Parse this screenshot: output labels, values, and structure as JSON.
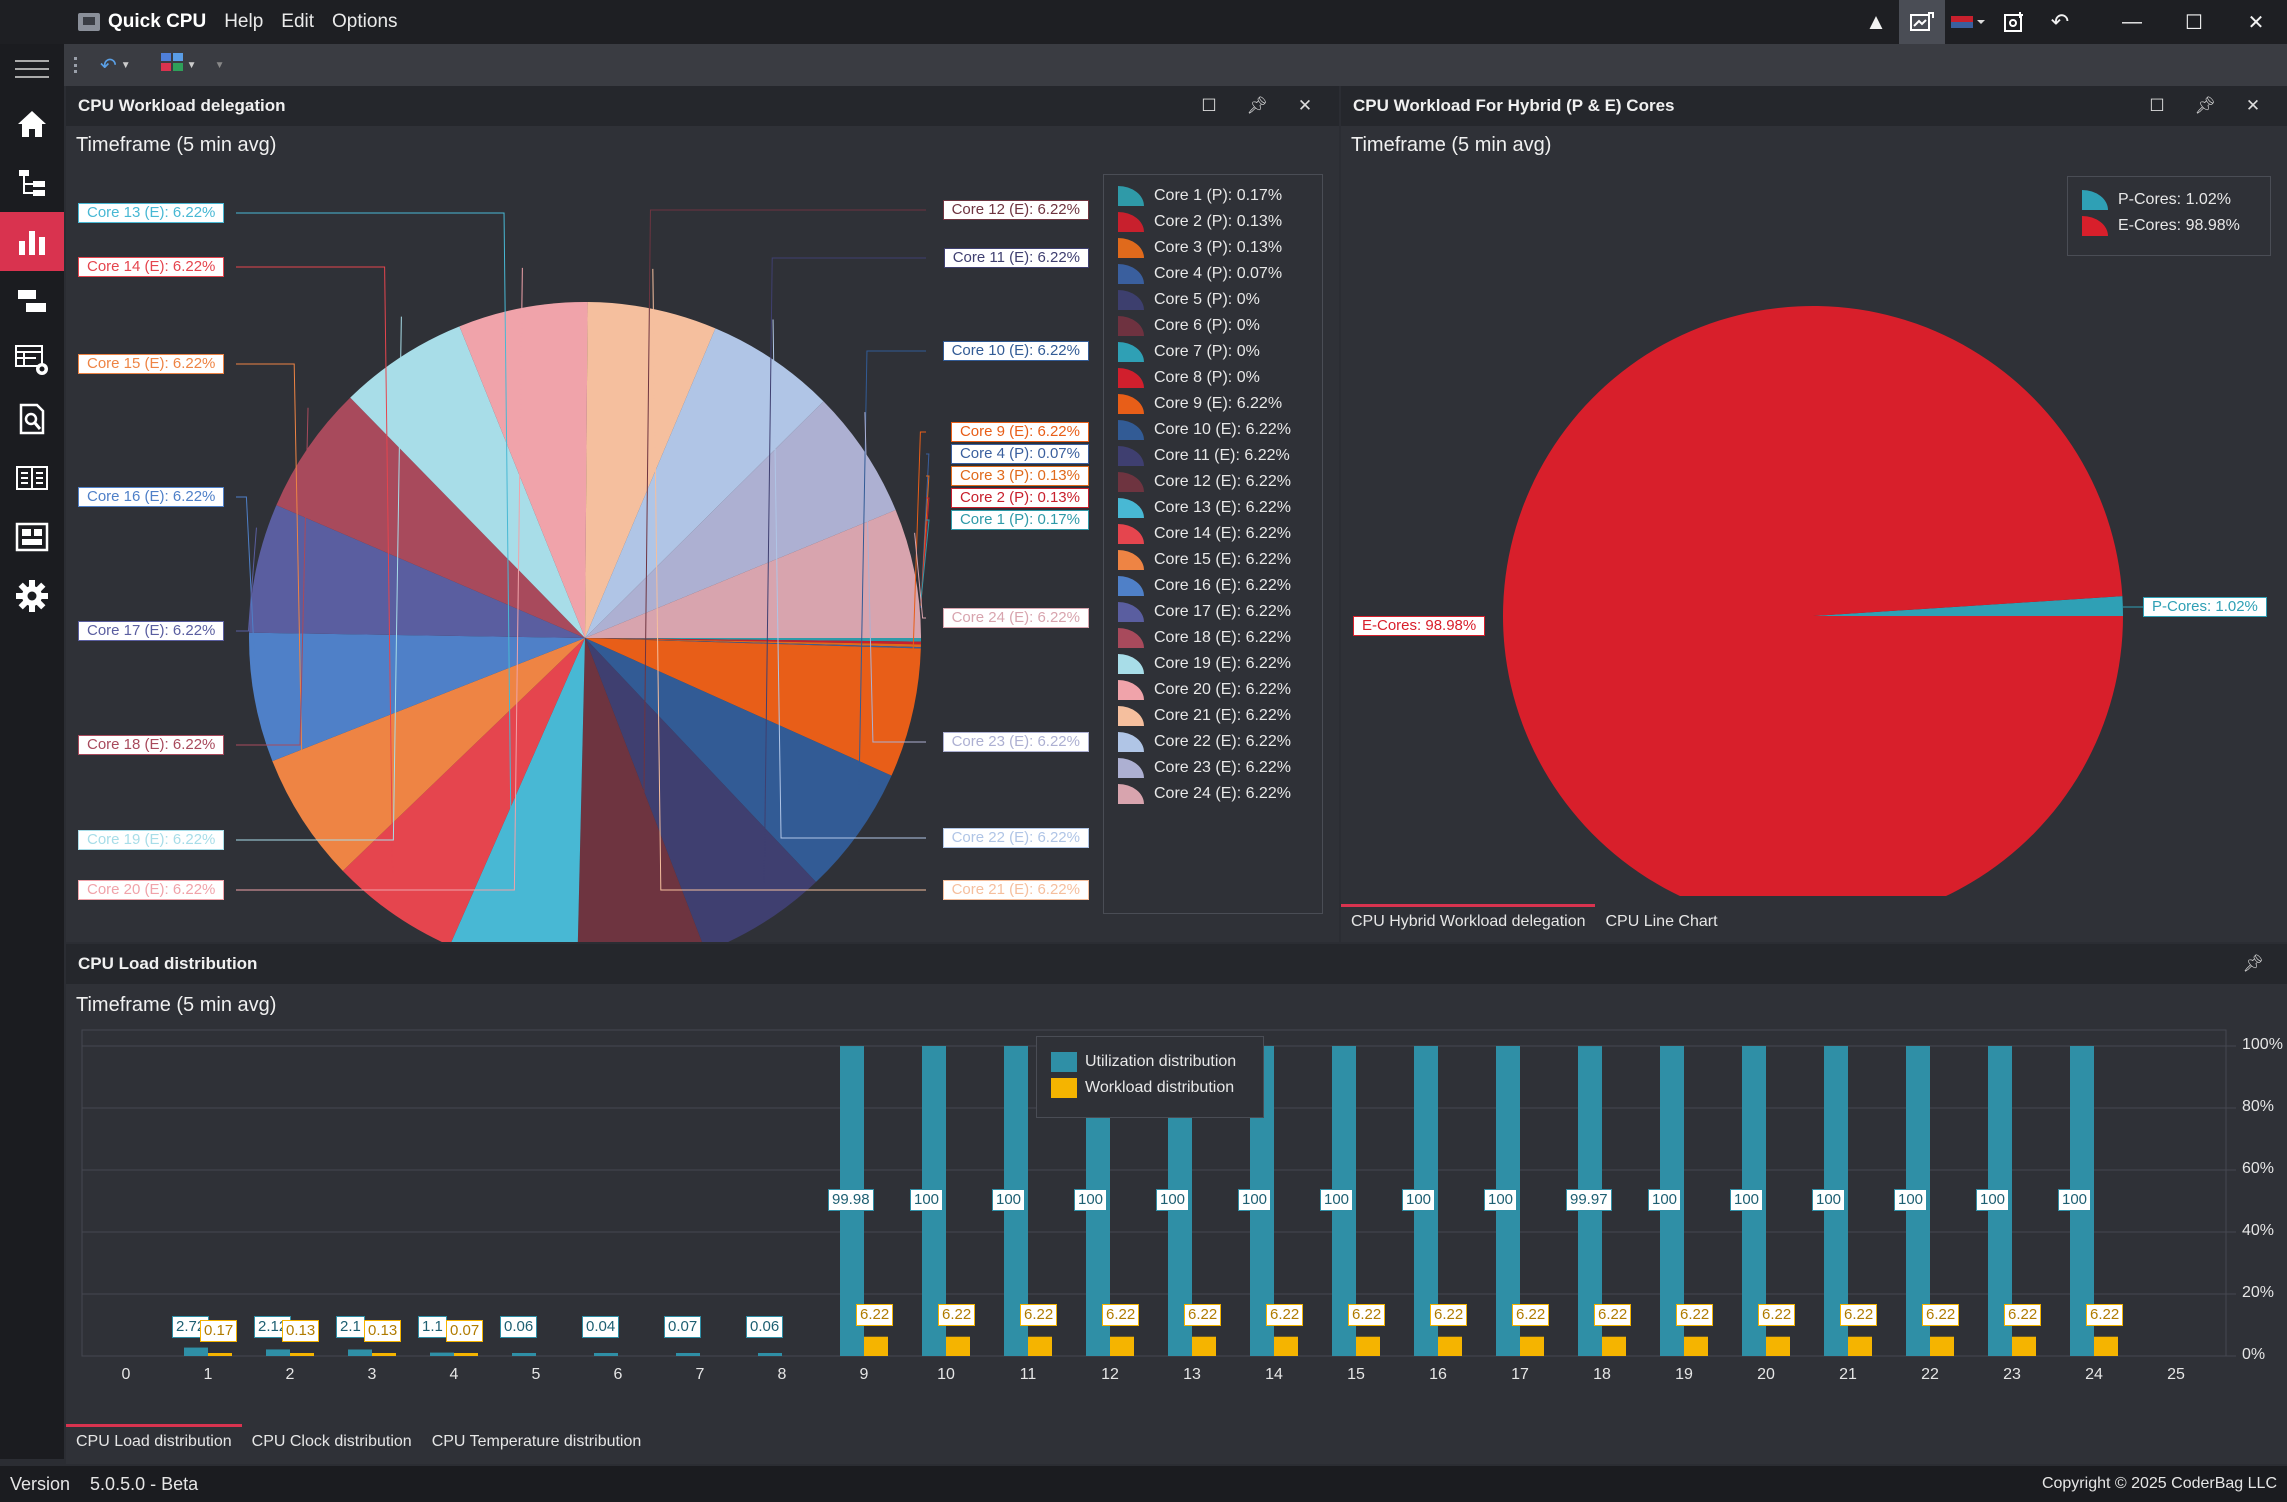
{
  "app": {
    "title": "Quick CPU",
    "menus": [
      "Help",
      "Edit",
      "Options"
    ]
  },
  "titlebar_icons": [
    "warning-icon",
    "screenshot-icon",
    "theme-icon",
    "capture-icon",
    "undo-icon"
  ],
  "window_controls": [
    "minimize",
    "maximize",
    "close"
  ],
  "sidebar": {
    "items": [
      "home-icon",
      "tree-icon",
      "bar-chart-icon",
      "gantt-icon",
      "settings-table-icon",
      "search-doc-icon",
      "book-icon",
      "dashboard-icon",
      "gear-icon"
    ],
    "active_index": 2
  },
  "workload_panel": {
    "title": "CPU Workload delegation",
    "timeframe": "Timeframe (5 min avg)",
    "chart_data": {
      "type": "pie",
      "slices": [
        {
          "label": "Core 1 (P)",
          "value": 0.17,
          "display": "Core 1 (P):  0.17%",
          "color": "#2f9aa8"
        },
        {
          "label": "Core 2 (P)",
          "value": 0.13,
          "display": "Core 2 (P):  0.13%",
          "color": "#c8202d"
        },
        {
          "label": "Core 3 (P)",
          "value": 0.13,
          "display": "Core 3 (P):  0.13%",
          "color": "#e06a1c"
        },
        {
          "label": "Core 4 (P)",
          "value": 0.07,
          "display": "Core 4 (P):  0.07%",
          "color": "#3a5f9e"
        },
        {
          "label": "Core 5 (P)",
          "value": 0,
          "display": "Core 5 (P):  0%",
          "color": "#3d3f6e"
        },
        {
          "label": "Core 6 (P)",
          "value": 0,
          "display": "Core 6 (P):  0%",
          "color": "#6e3240"
        },
        {
          "label": "Core 7 (P)",
          "value": 0,
          "display": "Core 7 (P):  0%",
          "color": "#2fa0b5"
        },
        {
          "label": "Core 8 (P)",
          "value": 0,
          "display": "Core 8 (P):  0%",
          "color": "#d11f2d"
        },
        {
          "label": "Core 9 (E)",
          "value": 6.22,
          "display": "Core 9 (E):  6.22%",
          "color": "#e85e18"
        },
        {
          "label": "Core 10 (E)",
          "value": 6.22,
          "display": "Core 10 (E):  6.22%",
          "color": "#325b95"
        },
        {
          "label": "Core 11 (E)",
          "value": 6.22,
          "display": "Core 11 (E):  6.22%",
          "color": "#3f3f70"
        },
        {
          "label": "Core 12 (E)",
          "value": 6.22,
          "display": "Core 12 (E):  6.22%",
          "color": "#6e3440"
        },
        {
          "label": "Core 13 (E)",
          "value": 6.22,
          "display": "Core 13 (E):  6.22%",
          "color": "#48b8d4"
        },
        {
          "label": "Core 14 (E)",
          "value": 6.22,
          "display": "Core 14 (E):  6.22%",
          "color": "#e5454e"
        },
        {
          "label": "Core 15 (E)",
          "value": 6.22,
          "display": "Core 15 (E):  6.22%",
          "color": "#ee8444"
        },
        {
          "label": "Core 16 (E)",
          "value": 6.22,
          "display": "Core 16 (E):  6.22%",
          "color": "#4f80c8"
        },
        {
          "label": "Core 17 (E)",
          "value": 6.22,
          "display": "Core 17 (E):  6.22%",
          "color": "#5a5ea0"
        },
        {
          "label": "Core 18 (E)",
          "value": 6.22,
          "display": "Core 18 (E):  6.22%",
          "color": "#a84a5c"
        },
        {
          "label": "Core 19 (E)",
          "value": 6.22,
          "display": "Core 19 (E):  6.22%",
          "color": "#a8dde8"
        },
        {
          "label": "Core 20 (E)",
          "value": 6.22,
          "display": "Core 20 (E):  6.22%",
          "color": "#f0a3aa"
        },
        {
          "label": "Core 21 (E)",
          "value": 6.22,
          "display": "Core 21 (E):  6.22%",
          "color": "#f5bf9e"
        },
        {
          "label": "Core 22 (E)",
          "value": 6.22,
          "display": "Core 22 (E):  6.22%",
          "color": "#b0c5e6"
        },
        {
          "label": "Core 23 (E)",
          "value": 6.22,
          "display": "Core 23 (E):  6.22%",
          "color": "#adb0d2"
        },
        {
          "label": "Core 24 (E)",
          "value": 6.22,
          "display": "Core 24 (E):  6.22%",
          "color": "#d8a4ae"
        }
      ],
      "callouts_left": [
        {
          "text": "Core 13 (E):  6.22%",
          "slice": 12
        },
        {
          "text": "Core 14 (E):  6.22%",
          "slice": 13
        },
        {
          "text": "Core 15 (E):  6.22%",
          "slice": 14
        },
        {
          "text": "Core 16 (E):  6.22%",
          "slice": 15
        },
        {
          "text": "Core 17 (E):  6.22%",
          "slice": 16
        },
        {
          "text": "Core 18 (E):  6.22%",
          "slice": 17
        },
        {
          "text": "Core 19 (E):  6.22%",
          "slice": 18
        },
        {
          "text": "Core 20 (E):  6.22%",
          "slice": 19
        }
      ],
      "callouts_right": [
        {
          "text": "Core 12 (E):  6.22%",
          "slice": 11
        },
        {
          "text": "Core 11 (E):  6.22%",
          "slice": 10
        },
        {
          "text": "Core 10 (E):  6.22%",
          "slice": 9
        },
        {
          "text": "Core 9 (E):  6.22%",
          "slice": 8
        },
        {
          "text": "Core 4 (P):  0.07%",
          "slice": 3
        },
        {
          "text": "Core 3 (P):  0.13%",
          "slice": 2
        },
        {
          "text": "Core 2 (P):  0.13%",
          "slice": 1
        },
        {
          "text": "Core 1 (P):  0.17%",
          "slice": 0
        },
        {
          "text": "Core 24 (E):  6.22%",
          "slice": 23
        },
        {
          "text": "Core 23 (E):  6.22%",
          "slice": 22
        },
        {
          "text": "Core 22 (E):  6.22%",
          "slice": 21
        },
        {
          "text": "Core 21 (E):  6.22%",
          "slice": 20
        }
      ]
    }
  },
  "hybrid_panel": {
    "title": "CPU Workload For Hybrid (P & E) Cores",
    "timeframe": "Timeframe (5 min avg)",
    "chart_data": {
      "type": "pie",
      "slices": [
        {
          "label": "P-Cores",
          "value": 1.02,
          "display": "P-Cores:  1.02%",
          "color": "#2fa0b5"
        },
        {
          "label": "E-Cores",
          "value": 98.98,
          "display": "E-Cores:  98.98%",
          "color": "#d81f2b"
        }
      ]
    },
    "tabs": [
      "CPU Hybrid Workload delegation",
      "CPU Line Chart"
    ],
    "active_tab": 0
  },
  "load_panel": {
    "title": "CPU Load distribution",
    "timeframe": "Timeframe (5 min avg)",
    "chart_data": {
      "type": "bar",
      "categories": [
        "0",
        "1",
        "2",
        "3",
        "4",
        "5",
        "6",
        "7",
        "8",
        "9",
        "10",
        "11",
        "12",
        "13",
        "14",
        "15",
        "16",
        "17",
        "18",
        "19",
        "20",
        "21",
        "22",
        "23",
        "24",
        "25"
      ],
      "series": [
        {
          "name": "Utilization distribution",
          "color": "#2f8fa6",
          "values": [
            null,
            2.72,
            2.12,
            2.1,
            1.1,
            0.06,
            0.04,
            0.07,
            0.06,
            99.98,
            100,
            100,
            100,
            100,
            100,
            100,
            100,
            100,
            99.97,
            100,
            100,
            100,
            100,
            100,
            100,
            null
          ],
          "labels": [
            null,
            "2.72",
            "2.12",
            "2.1",
            "1.1",
            "0.06",
            "0.04",
            "0.07",
            "0.06",
            "99.98",
            "100",
            "100",
            "100",
            "100",
            "100",
            "100",
            "100",
            "100",
            "99.97",
            "100",
            "100",
            "100",
            "100",
            "100",
            "100",
            null
          ]
        },
        {
          "name": "Workload distribution",
          "color": "#f5b400",
          "values": [
            null,
            0.17,
            0.13,
            0.13,
            0.07,
            null,
            null,
            null,
            null,
            6.22,
            6.22,
            6.22,
            6.22,
            6.22,
            6.22,
            6.22,
            6.22,
            6.22,
            6.22,
            6.22,
            6.22,
            6.22,
            6.22,
            6.22,
            6.22,
            null
          ],
          "labels": [
            null,
            "0.17",
            "0.13",
            "0.13",
            "0.07",
            null,
            null,
            null,
            null,
            "6.22",
            "6.22",
            "6.22",
            "6.22",
            "6.22",
            "6.22",
            "6.22",
            "6.22",
            "6.22",
            "6.22",
            "6.22",
            "6.22",
            "6.22",
            "6.22",
            "6.22",
            "6.22",
            null
          ]
        }
      ],
      "y_ticks": [
        "100%",
        "80%",
        "60%",
        "40%",
        "20%",
        "0%"
      ],
      "ylim": [
        0,
        100
      ],
      "legend_placement": "top-center",
      "grid": true
    },
    "tabs": [
      "CPU Load distribution",
      "CPU Clock distribution",
      "CPU Temperature distribution"
    ],
    "active_tab": 0
  },
  "status": {
    "version_label": "Version",
    "version": "5.0.5.0 - Beta",
    "copyright": "Copyright © 2025 CoderBag LLC"
  }
}
